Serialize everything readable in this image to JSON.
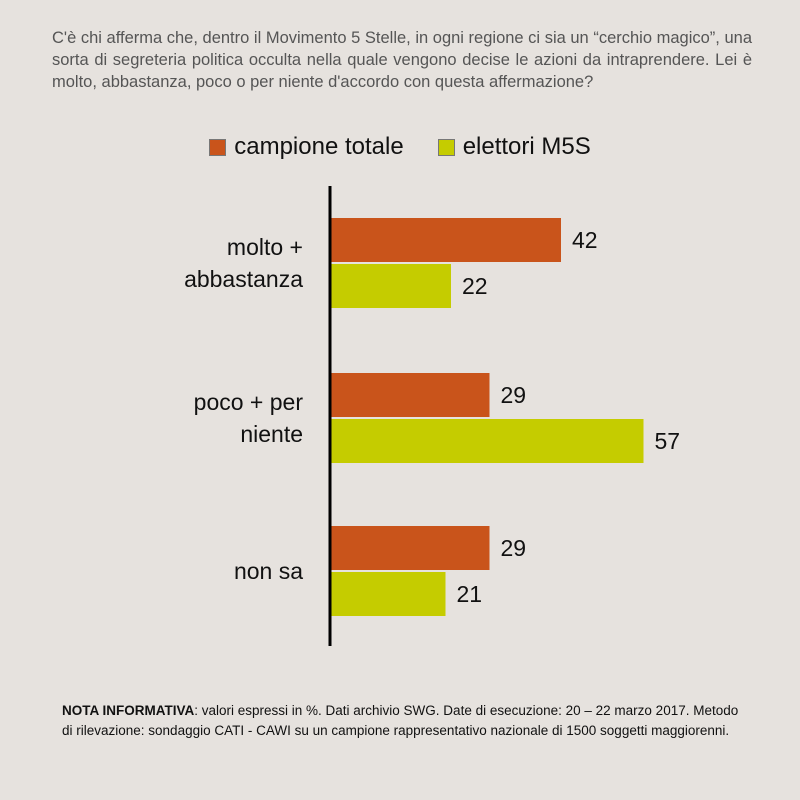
{
  "question": "C'è chi afferma che, dentro il Movimento 5 Stelle, in ogni regione ci sia un “cerchio magico”,  una sorta di segreteria politica occulta nella quale vengono decise le azioni da intraprendere. Lei è molto, abbastanza, poco o per niente d'accordo con questa affermazione?",
  "note": {
    "label": "NOTA INFORMATIVA",
    "text": ": valori espressi in %. Dati archivio SWG. Date di esecuzione: 20 – 22 marzo 2017. Metodo di rilevazione: sondaggio CATI - CAWI su un campione rappresentativo nazionale di 1500 soggetti maggiorenni."
  },
  "chart_data": {
    "type": "bar",
    "orientation": "horizontal",
    "categories": [
      [
        "molto +",
        "abbastanza"
      ],
      [
        "poco + per",
        "niente"
      ],
      [
        "non sa"
      ]
    ],
    "series": [
      {
        "name": "campione totale",
        "color": "#c9541b",
        "values": [
          42,
          29,
          29
        ]
      },
      {
        "name": "elettori M5S",
        "color": "#c5cc00",
        "values": [
          22,
          57,
          21
        ]
      }
    ],
    "legend_position": "top-center",
    "grid": false
  }
}
